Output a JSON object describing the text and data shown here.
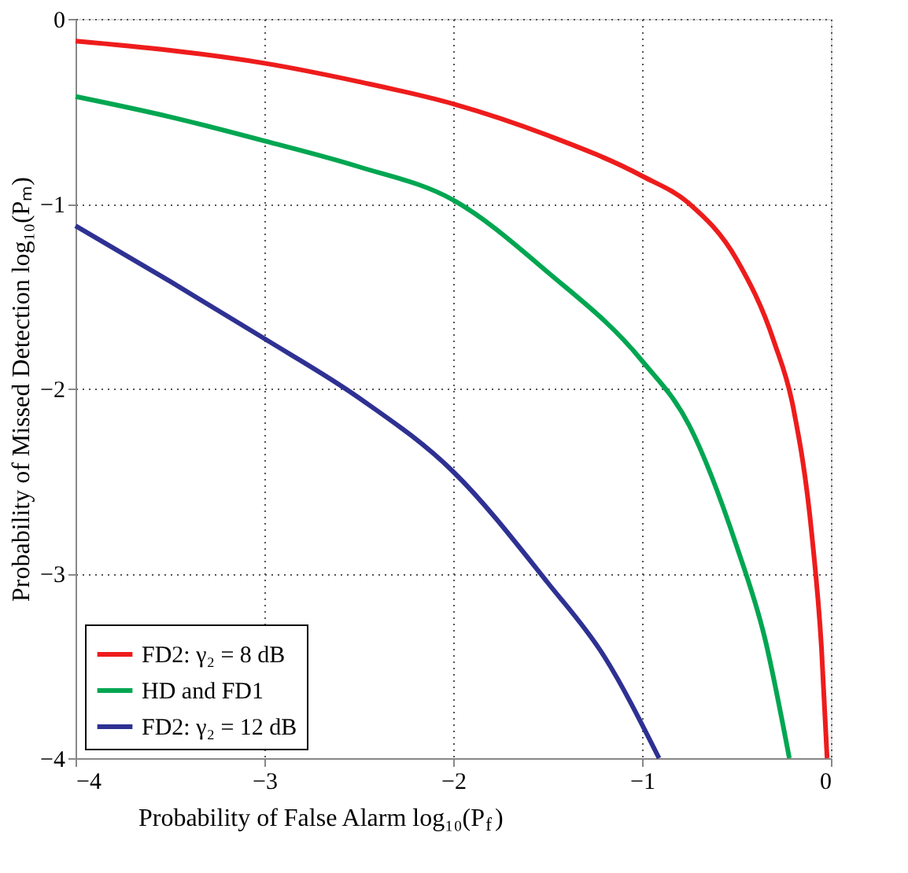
{
  "chart_data": {
    "type": "line",
    "xlabel": "Probability of False Alarm log₁₀(P$_{f}$)",
    "ylabel": "Probability of Missed Detection log₁₀(Pₘ)",
    "xlim": [
      -4,
      0
    ],
    "ylim": [
      -4,
      0
    ],
    "xticks": [
      -4,
      -3,
      -2,
      -1,
      0
    ],
    "yticks": [
      -4,
      -3,
      -2,
      -1,
      0
    ],
    "grid": true,
    "legend": "bottom left",
    "line_style": "solid",
    "series": [
      {
        "name": "FD2: γ₂ = 8 dB",
        "color": "#ee1c1c",
        "x": [
          -4,
          -3.5,
          -3,
          -2.5,
          -2,
          -1.5,
          -1,
          -0.75,
          -0.5,
          -0.3,
          -0.2,
          -0.1,
          -0.05,
          -0.02
        ],
        "values": [
          -0.12,
          -0.17,
          -0.24,
          -0.34,
          -0.46,
          -0.63,
          -0.85,
          -1.0,
          -1.3,
          -1.75,
          -2.1,
          -2.8,
          -3.4,
          -4
        ]
      },
      {
        "name": "HD and FD1",
        "color": "#00a651",
        "x": [
          -4,
          -3.5,
          -3,
          -2.5,
          -2,
          -1.5,
          -1,
          -0.75,
          -0.5,
          -0.35,
          -0.22
        ],
        "values": [
          -0.42,
          -0.53,
          -0.66,
          -0.8,
          -0.98,
          -1.37,
          -1.85,
          -2.2,
          -2.85,
          -3.35,
          -4
        ]
      },
      {
        "name": "FD2: γ₂ = 12 dB",
        "color": "#2e3192",
        "x": [
          -4,
          -3.5,
          -3,
          -2.5,
          -2,
          -1.5,
          -1.2,
          -0.91
        ],
        "values": [
          -1.12,
          -1.42,
          -1.73,
          -2.05,
          -2.45,
          -3.05,
          -3.45,
          -4
        ]
      }
    ]
  }
}
